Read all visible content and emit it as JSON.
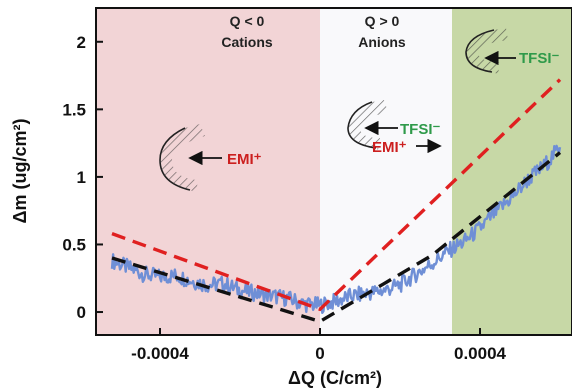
{
  "chart_data": {
    "type": "line",
    "xlabel": "ΔQ (C/cm²)",
    "ylabel": "Δm (ug/cm²)",
    "xlim": [
      -0.00056,
      0.00063
    ],
    "ylim": [
      -0.17,
      2.25
    ],
    "x_ticks": [
      {
        "value": -0.0004,
        "label": "-0.0004"
      },
      {
        "value": 0,
        "label": "0"
      },
      {
        "value": 0.0004,
        "label": "0.0004"
      }
    ],
    "y_ticks": [
      {
        "value": 0,
        "label": "0"
      },
      {
        "value": 0.5,
        "label": "0.5"
      },
      {
        "value": 1,
        "label": "1"
      },
      {
        "value": 1.5,
        "label": "1.5"
      },
      {
        "value": 2,
        "label": "2"
      }
    ],
    "regions": [
      {
        "x_from": -0.00056,
        "x_to": 0,
        "color": "#f2d4d6",
        "label_line1": "Q < 0",
        "label_line2": "Cations"
      },
      {
        "x_from": 0,
        "x_to": 0.00033,
        "color": "#f9f9fb",
        "label_line1": "Q > 0",
        "label_line2": "Anions"
      },
      {
        "x_from": 0.00033,
        "x_to": 0.00063,
        "color": "#c7d8a6",
        "label_line1": "",
        "label_line2": ""
      }
    ],
    "ion_labels": {
      "emi_left": "EMI⁺",
      "tfsi_middle": "TFSI⁻",
      "emi_middle": "EMI⁺",
      "tfsi_right": "TFSI⁻"
    },
    "series": [
      {
        "style": "measured",
        "color": "#6f8fd6",
        "x": [
          -0.00052,
          -0.00048,
          -0.00044,
          -0.0004,
          -0.00036,
          -0.00032,
          -0.00028,
          -0.00024,
          -0.0002,
          -0.00016,
          -0.00012,
          -8e-05,
          -4e-05,
          0,
          4e-05,
          8e-05,
          0.00012,
          0.00016,
          0.0002,
          0.00024,
          0.00028,
          0.00032,
          0.00036,
          0.0004,
          0.00044,
          0.00048,
          0.00052,
          0.00056,
          0.0006
        ],
        "y": [
          0.38,
          0.33,
          0.28,
          0.26,
          0.27,
          0.23,
          0.2,
          0.21,
          0.16,
          0.14,
          0.12,
          0.1,
          0.06,
          0.05,
          0.08,
          0.12,
          0.14,
          0.16,
          0.2,
          0.28,
          0.36,
          0.45,
          0.52,
          0.62,
          0.74,
          0.85,
          0.98,
          1.08,
          1.22
        ]
      },
      {
        "style": "fit-black-dashed",
        "color": "#111111",
        "x": [
          -0.00052,
          0,
          0.00028,
          0.0006
        ],
        "y": [
          0.4,
          -0.07,
          0.42,
          1.18
        ]
      },
      {
        "style": "fit-red-dashed",
        "color": "#e02020",
        "x": [
          -0.00052,
          0,
          0.0006
        ],
        "y": [
          0.58,
          0.02,
          1.72
        ]
      }
    ]
  }
}
